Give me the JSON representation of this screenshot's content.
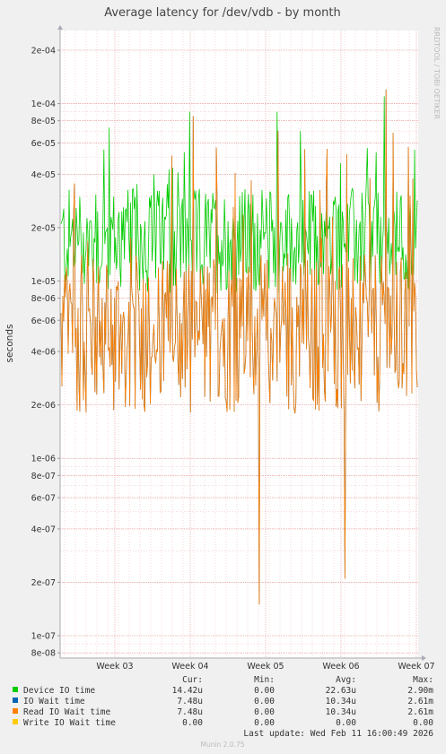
{
  "chart_data": {
    "type": "line",
    "title": "Average latency for /dev/vdb - by month",
    "ylabel": "seconds",
    "side_text": "RRDTOOL / TOBI OETIKER",
    "y_scale": "log",
    "ylim": [
      8e-08,
      0.0003
    ],
    "y_ticks": [
      {
        "value": 0.0002,
        "label": "2e-04"
      },
      {
        "value": 0.0001,
        "label": "1e-04"
      },
      {
        "value": 8e-05,
        "label": "8e-05"
      },
      {
        "value": 6e-05,
        "label": "6e-05"
      },
      {
        "value": 4e-05,
        "label": "4e-05"
      },
      {
        "value": 2e-05,
        "label": "2e-05"
      },
      {
        "value": 1e-05,
        "label": "1e-05"
      },
      {
        "value": 8e-06,
        "label": "8e-06"
      },
      {
        "value": 6e-06,
        "label": "6e-06"
      },
      {
        "value": 4e-06,
        "label": "4e-06"
      },
      {
        "value": 2e-06,
        "label": "2e-06"
      },
      {
        "value": 1e-06,
        "label": "1e-06"
      },
      {
        "value": 8e-07,
        "label": "8e-07"
      },
      {
        "value": 6e-07,
        "label": "6e-07"
      },
      {
        "value": 4e-07,
        "label": "4e-07"
      },
      {
        "value": 2e-07,
        "label": "2e-07"
      },
      {
        "value": 1e-07,
        "label": "1e-07"
      },
      {
        "value": 8e-08,
        "label": "8e-08"
      }
    ],
    "x_ticks": [
      "Week 03",
      "Week 04",
      "Week 05",
      "Week 06",
      "Week 07"
    ],
    "grid": true,
    "series": [
      {
        "name": "Device IO time",
        "color": "#00cc00"
      },
      {
        "name": "IO Wait time",
        "color": "#0066b3"
      },
      {
        "name": "Read IO Wait time",
        "color": "#ff8000"
      },
      {
        "name": "Write IO Wait time",
        "color": "#ffcc00"
      }
    ],
    "legend_headers": [
      "Cur:",
      "Min:",
      "Avg:",
      "Max:"
    ],
    "legend_rows": [
      [
        "14.42u",
        "0.00",
        "22.63u",
        "2.90m"
      ],
      [
        "7.48u",
        "0.00",
        "10.34u",
        "2.61m"
      ],
      [
        "7.48u",
        "0.00",
        "10.34u",
        "2.61m"
      ],
      [
        "0.00",
        "0.00",
        "0.00",
        "0.00"
      ]
    ],
    "last_update": "Last update: Wed Feb 11 16:00:49 2026",
    "footer": "Munin 2.0.75"
  }
}
